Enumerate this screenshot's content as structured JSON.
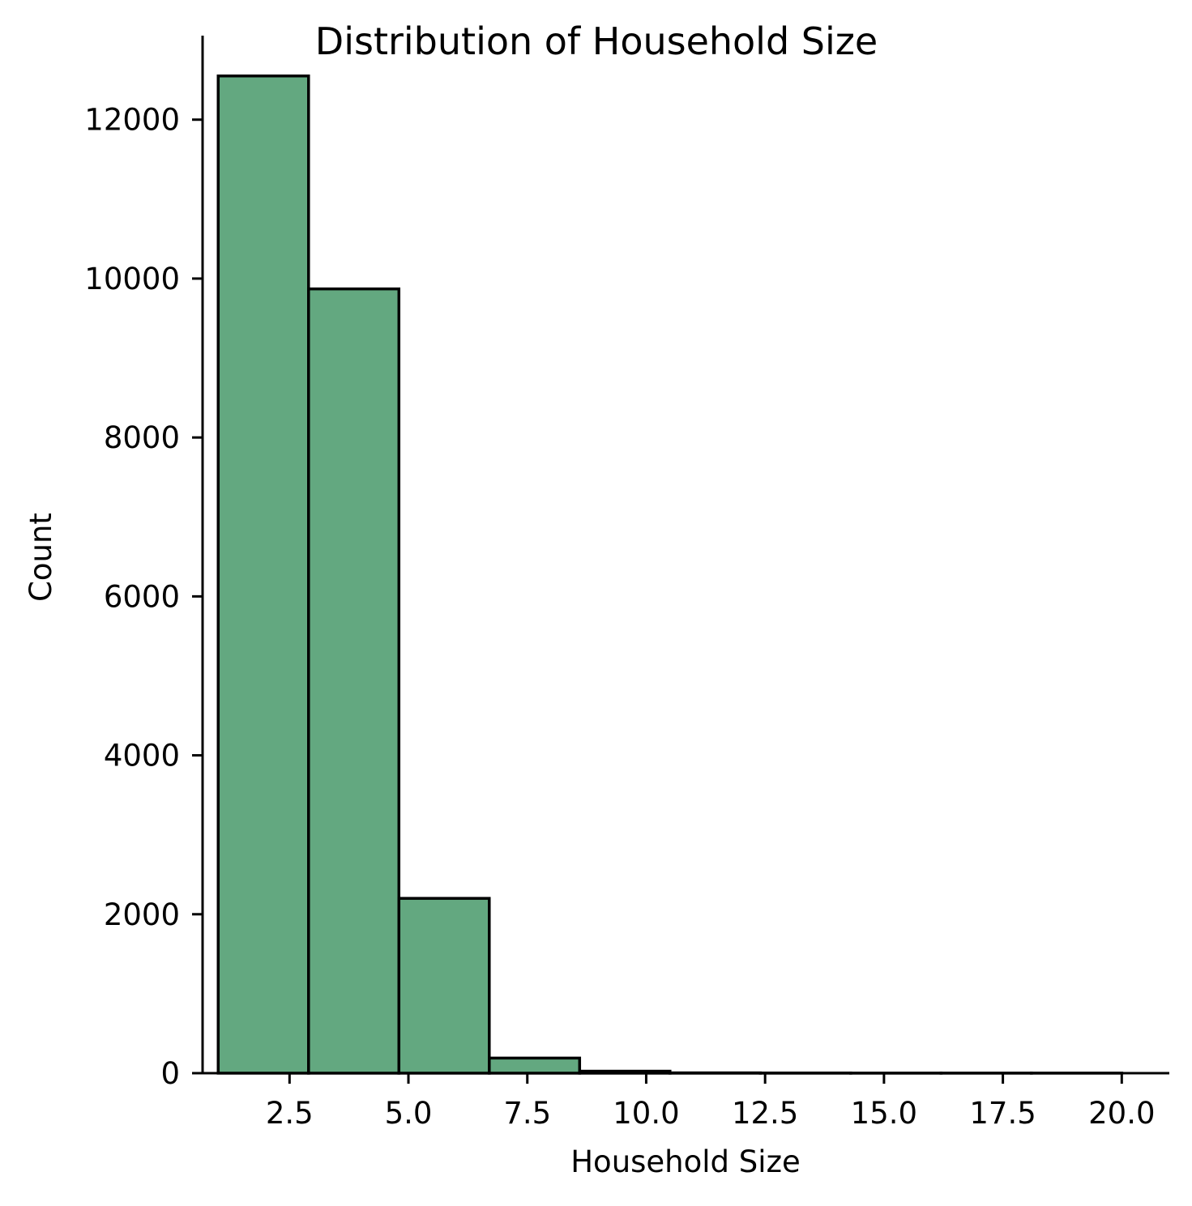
{
  "chart_data": {
    "type": "bar",
    "subtype": "histogram",
    "title": "Distribution of Household Size",
    "xlabel": "Household Size",
    "ylabel": "Count",
    "bins": [
      {
        "x0": 1.0,
        "x1": 2.9,
        "count": 12550
      },
      {
        "x0": 2.9,
        "x1": 4.8,
        "count": 9870
      },
      {
        "x0": 4.8,
        "x1": 6.7,
        "count": 2200
      },
      {
        "x0": 6.7,
        "x1": 8.6,
        "count": 190
      },
      {
        "x0": 8.6,
        "x1": 10.5,
        "count": 25
      },
      {
        "x0": 10.5,
        "x1": 12.4,
        "count": 4
      },
      {
        "x0": 12.4,
        "x1": 14.3,
        "count": 2
      },
      {
        "x0": 14.3,
        "x1": 16.2,
        "count": 1
      },
      {
        "x0": 16.2,
        "x1": 18.1,
        "count": 1
      },
      {
        "x0": 18.1,
        "x1": 20.0,
        "count": 1
      }
    ],
    "xlim": [
      0.45,
      21.0
    ],
    "ylim": [
      0,
      13200
    ],
    "xticks": [
      2.5,
      5.0,
      7.5,
      10.0,
      12.5,
      15.0,
      17.5,
      20.0
    ],
    "xtick_labels": [
      "2.5",
      "5.0",
      "7.5",
      "10.0",
      "12.5",
      "15.0",
      "17.5",
      "20.0"
    ],
    "yticks": [
      0,
      2000,
      4000,
      6000,
      8000,
      10000,
      12000
    ],
    "ytick_labels": [
      "0",
      "2000",
      "4000",
      "6000",
      "8000",
      "10000",
      "12000"
    ],
    "bar_color": "#63a880",
    "edge_color": "#000000",
    "grid": false,
    "legend": "none"
  }
}
